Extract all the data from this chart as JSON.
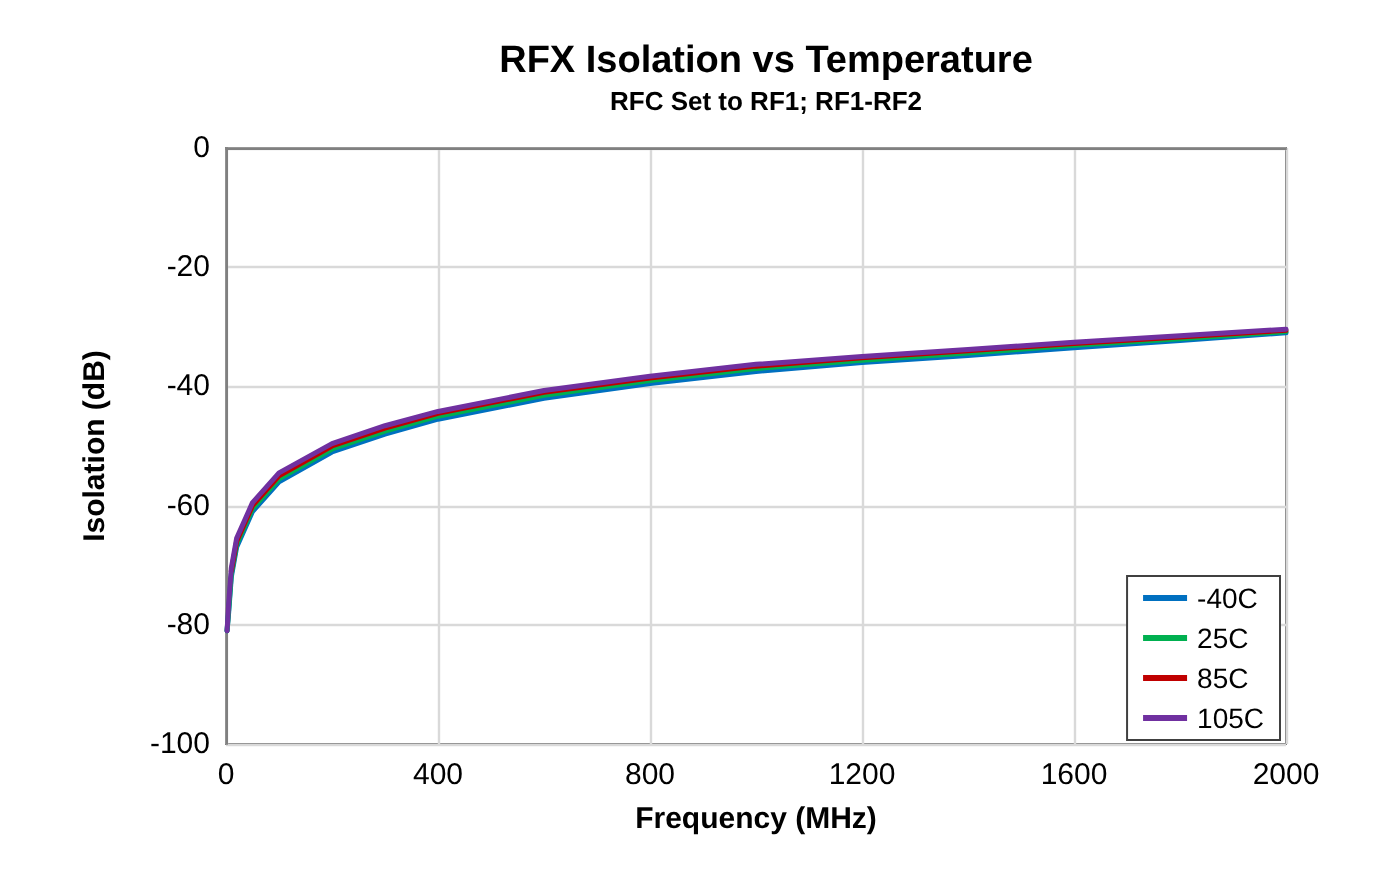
{
  "chart_data": {
    "type": "line",
    "title": "RFX Isolation vs Temperature",
    "subtitle": "RFC Set to RF1; RF1-RF2",
    "xlabel": "Frequency (MHz)",
    "ylabel": "Isolation (dB)",
    "x": [
      2,
      5,
      10,
      20,
      50,
      100,
      200,
      300,
      400,
      600,
      800,
      1000,
      1200,
      1400,
      1600,
      1800,
      2000
    ],
    "series": [
      {
        "name": "-40C",
        "color": "#0070c0",
        "values": [
          -81,
          -78,
          -72,
          -67,
          -61,
          -56,
          -51,
          -48,
          -45.5,
          -42,
          -39.5,
          -37.5,
          -36,
          -34.8,
          -33.5,
          -32.3,
          -31
        ]
      },
      {
        "name": "25C",
        "color": "#00b050",
        "values": [
          -81,
          -77.5,
          -71.5,
          -66.5,
          -60.5,
          -55.5,
          -50.5,
          -47.5,
          -45,
          -41.5,
          -39,
          -37,
          -35.6,
          -34.4,
          -33.1,
          -32,
          -30.8
        ]
      },
      {
        "name": "85C",
        "color": "#c00000",
        "values": [
          null,
          null,
          -71,
          -66,
          -60,
          -55,
          -50,
          -47,
          -44.5,
          -41,
          -38.6,
          -36.6,
          -35.2,
          -34,
          -32.8,
          -31.7,
          -30.6
        ]
      },
      {
        "name": "105C",
        "color": "#7030a0",
        "values": [
          -81,
          -76.5,
          -70.5,
          -65.5,
          -59.5,
          -54.5,
          -49.6,
          -46.6,
          -44.2,
          -40.7,
          -38.3,
          -36.3,
          -35,
          -33.8,
          -32.6,
          -31.5,
          -30.4
        ]
      }
    ],
    "xlim": [
      0,
      2000
    ],
    "xticks": [
      0,
      400,
      800,
      1200,
      1600,
      2000
    ],
    "ylim": [
      -100,
      0
    ],
    "yticks": [
      -100,
      -80,
      -60,
      -40,
      -20,
      0
    ],
    "grid": true,
    "legend": "bottom right",
    "marker": "none",
    "line_style": "solid"
  }
}
